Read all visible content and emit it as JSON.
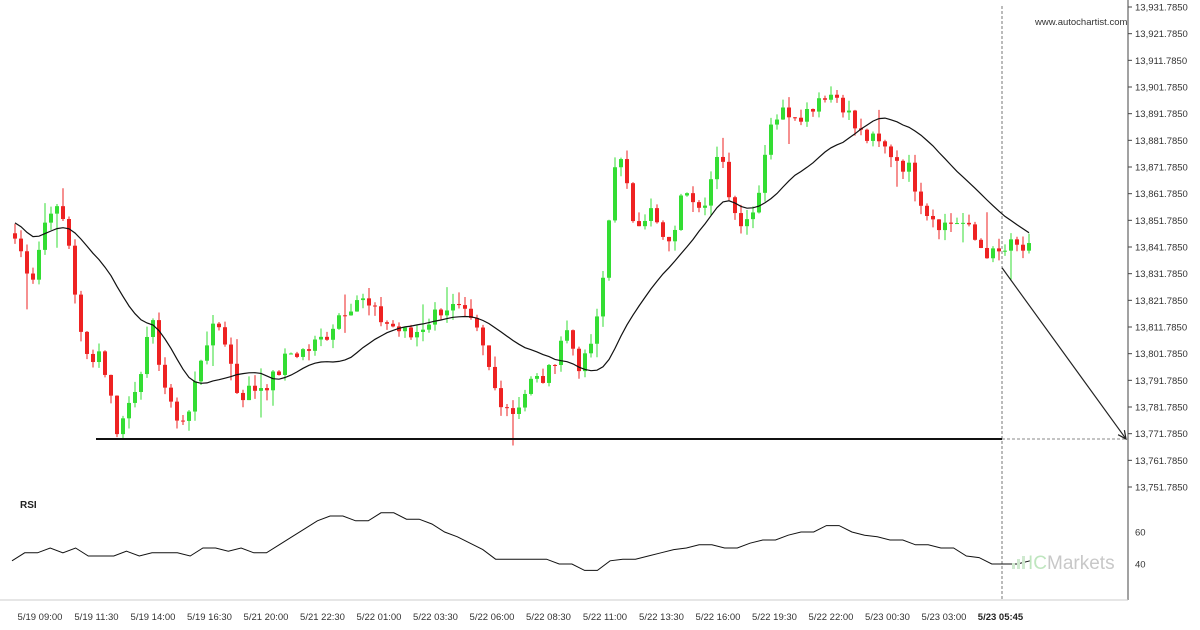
{
  "watermark": "www.autochartist.com",
  "brand": {
    "prefix": "IC",
    "suffix": "Markets"
  },
  "colors": {
    "up": "#33dd33",
    "down": "#ee2222",
    "ma": "#111111",
    "support": "#111111",
    "rsi": "#111111"
  },
  "chart_data": [
    {
      "type": "candlestick",
      "title": "",
      "ylim": [
        13748.0,
        13932.5
      ],
      "y_ticks": [
        "13,931.7850",
        "13,921.7850",
        "13,911.7850",
        "13,901.7850",
        "13,891.7850",
        "13,881.7850",
        "13,871.7850",
        "13,861.7850",
        "13,851.7850",
        "13,841.7850",
        "13,831.7850",
        "13,821.7850",
        "13,811.7850",
        "13,801.7850",
        "13,791.7850",
        "13,781.7850",
        "13,771.7850",
        "13,761.7850",
        "13,751.7850"
      ],
      "x_ticks": [
        "5/19 09:00",
        "5/19 11:30",
        "5/19 14:00",
        "5/19 16:30",
        "5/21 20:00",
        "5/21 22:30",
        "5/22 01:00",
        "5/22 03:30",
        "5/22 06:00",
        "5/22 08:30",
        "5/22 11:00",
        "5/22 13:30",
        "5/22 16:00",
        "5/22 19:30",
        "5/22 22:00",
        "5/23 00:30",
        "5/23 03:00",
        "5/23 05:45"
      ],
      "support_level": 13769.8,
      "forecast": {
        "from_value": 13834.0,
        "to_value": 13769.8
      },
      "close_anchors": [
        13845,
        13830,
        13858,
        13850,
        13800,
        13803,
        13772,
        13790,
        13812,
        13781,
        13776,
        13806,
        13813,
        13786,
        13789,
        13792,
        13802,
        13803,
        13808,
        13818,
        13823,
        13816,
        13812,
        13808,
        13814,
        13820,
        13817,
        13808,
        13787,
        13780,
        13791,
        13793,
        13812,
        13795,
        13816,
        13880,
        13852,
        13855,
        13840,
        13865,
        13858,
        13876,
        13852,
        13855,
        13890,
        13893,
        13892,
        13900,
        13898,
        13885,
        13881,
        13877,
        13871,
        13856,
        13850,
        13852,
        13843,
        13838,
        13842,
        13840
      ]
    },
    {
      "type": "line",
      "title": "RSI",
      "ylim": [
        20,
        80
      ],
      "y_ticks": [
        "60",
        "40"
      ],
      "values": [
        42,
        47,
        47,
        50,
        47,
        50,
        45,
        45,
        45,
        48,
        45,
        47,
        47,
        47,
        45,
        50,
        50,
        48,
        50,
        47,
        47,
        52,
        57,
        62,
        67,
        70,
        70,
        67,
        67,
        72,
        72,
        68,
        68,
        65,
        60,
        57,
        53,
        49,
        43,
        43,
        43,
        43,
        43,
        40,
        40,
        36,
        36,
        42,
        43,
        43,
        45,
        47,
        49,
        50,
        52,
        52,
        50,
        50,
        53,
        55,
        55,
        58,
        60,
        60,
        64,
        64,
        60,
        58,
        57,
        55,
        55,
        52,
        52,
        50,
        50,
        45,
        44,
        40,
        40,
        40,
        42
      ]
    }
  ]
}
